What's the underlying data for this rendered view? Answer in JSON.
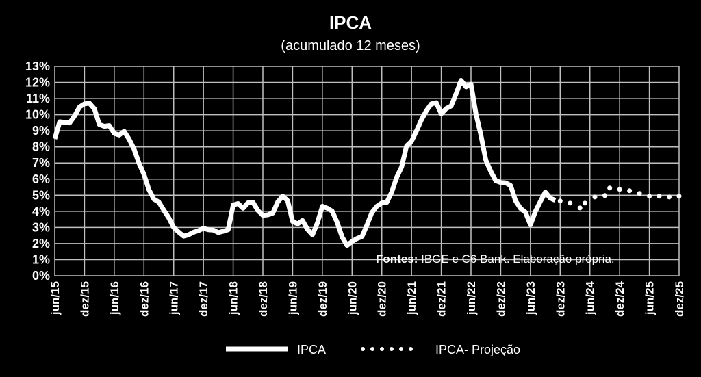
{
  "chart_data": {
    "type": "line",
    "title": "IPCA",
    "subtitle": "(acumulado 12 meses)",
    "xlabel": "",
    "ylabel": "",
    "ylim": [
      0,
      13
    ],
    "y_ticks": [
      "0%",
      "1%",
      "2%",
      "3%",
      "4%",
      "5%",
      "6%",
      "7%",
      "8%",
      "9%",
      "10%",
      "11%",
      "12%",
      "13%"
    ],
    "x_ticks": [
      "jun/15",
      "dez/15",
      "jun/16",
      "dez/16",
      "jun/17",
      "dez/17",
      "jun/18",
      "dez/18",
      "jun/19",
      "dez/19",
      "jun/20",
      "dez/20",
      "jun/21",
      "dez/21",
      "jun/22",
      "dez/22",
      "jun/23",
      "dez/23",
      "jun/24",
      "dez/24",
      "jun/25",
      "dez/25"
    ],
    "xlim": [
      "jun/15",
      "dez/25"
    ],
    "grid": true,
    "legend_position": "bottom",
    "annotation": {
      "bold": "Fontes:",
      "text": " IBGE e C6 Bank. Elaboração própria."
    },
    "colors": {
      "background": "#000000",
      "line": "#ffffff",
      "grid": "#bfbfbf"
    },
    "series": [
      {
        "name": "IPCA",
        "style": "solid",
        "x": [
          "jun/15",
          "jul/15",
          "ago/15",
          "set/15",
          "out/15",
          "nov/15",
          "dez/15",
          "jan/16",
          "fev/16",
          "mar/16",
          "abr/16",
          "mai/16",
          "jun/16",
          "jul/16",
          "ago/16",
          "set/16",
          "out/16",
          "nov/16",
          "dez/16",
          "jan/17",
          "fev/17",
          "mar/17",
          "abr/17",
          "mai/17",
          "jun/17",
          "jul/17",
          "ago/17",
          "set/17",
          "out/17",
          "nov/17",
          "dez/17",
          "jan/18",
          "fev/18",
          "mar/18",
          "abr/18",
          "mai/18",
          "jun/18",
          "jul/18",
          "ago/18",
          "set/18",
          "out/18",
          "nov/18",
          "dez/18",
          "jan/19",
          "fev/19",
          "mar/19",
          "abr/19",
          "mai/19",
          "jun/19",
          "jul/19",
          "ago/19",
          "set/19",
          "out/19",
          "nov/19",
          "dez/19",
          "jan/20",
          "fev/20",
          "mar/20",
          "abr/20",
          "mai/20",
          "jun/20",
          "jul/20",
          "ago/20",
          "set/20",
          "out/20",
          "nov/20",
          "dez/20",
          "jan/21",
          "fev/21",
          "mar/21",
          "abr/21",
          "mai/21",
          "jun/21",
          "jul/21",
          "ago/21",
          "set/21",
          "out/21",
          "nov/21",
          "dez/21",
          "jan/22",
          "fev/22",
          "mar/22",
          "abr/22",
          "mai/22",
          "jun/22",
          "jul/22",
          "ago/22",
          "set/22",
          "out/22",
          "nov/22",
          "dez/22",
          "jan/23",
          "fev/23",
          "mar/23",
          "abr/23",
          "mai/23",
          "jun/23",
          "jul/23",
          "ago/23",
          "set/23",
          "out/23",
          "nov/23"
        ],
        "values": [
          8.5,
          9.56,
          9.53,
          9.49,
          9.93,
          10.48,
          10.67,
          10.71,
          10.36,
          9.39,
          9.28,
          9.32,
          8.84,
          8.74,
          8.97,
          8.48,
          7.87,
          6.99,
          6.29,
          5.35,
          4.76,
          4.57,
          4.08,
          3.6,
          3.0,
          2.71,
          2.46,
          2.54,
          2.7,
          2.8,
          2.95,
          2.86,
          2.84,
          2.68,
          2.76,
          2.86,
          4.39,
          4.48,
          4.19,
          4.53,
          4.56,
          4.05,
          3.75,
          3.78,
          3.89,
          4.58,
          4.94,
          4.66,
          3.37,
          3.22,
          3.43,
          2.89,
          2.54,
          3.27,
          4.31,
          4.19,
          4.01,
          3.3,
          2.4,
          1.88,
          2.13,
          2.31,
          2.44,
          3.14,
          3.92,
          4.31,
          4.52,
          4.56,
          5.2,
          6.1,
          6.76,
          8.06,
          8.35,
          8.99,
          9.68,
          10.25,
          10.67,
          10.74,
          10.06,
          10.38,
          10.54,
          11.3,
          12.13,
          11.73,
          11.89,
          10.07,
          8.73,
          7.17,
          6.47,
          5.9,
          5.79,
          5.77,
          5.6,
          4.65,
          4.18,
          3.94,
          3.16,
          3.99,
          4.61,
          5.19,
          4.82,
          4.68
        ]
      },
      {
        "name": "IPCA- Projeção",
        "style": "dotted",
        "x": [
          "dez/23",
          "fev/24",
          "abr/24",
          "mai/24",
          "jul/24",
          "set/24",
          "out/24",
          "dez/24",
          "fev/25",
          "abr/25",
          "jun/25",
          "ago/25",
          "out/25",
          "dez/25"
        ],
        "values": [
          4.64,
          4.51,
          4.21,
          4.51,
          4.89,
          4.98,
          5.45,
          5.36,
          5.28,
          5.11,
          4.94,
          4.94,
          4.89,
          4.94
        ]
      }
    ]
  }
}
